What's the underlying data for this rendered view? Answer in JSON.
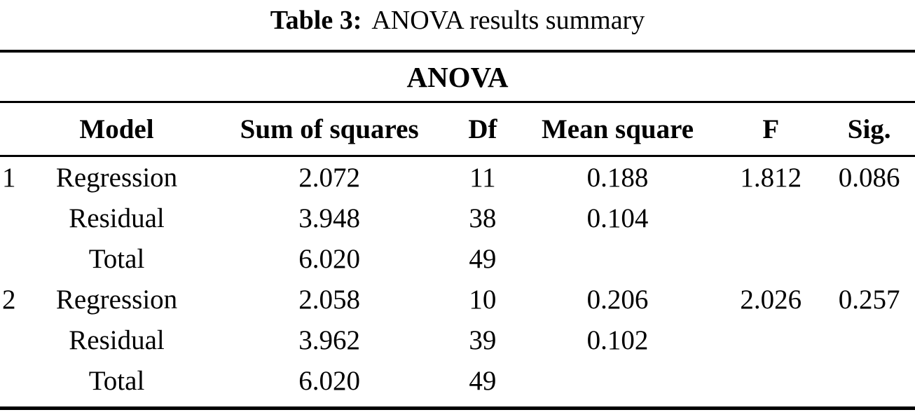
{
  "caption": {
    "label": "Table 3:",
    "text": "ANOVA results summary"
  },
  "table": {
    "title": "ANOVA",
    "columns": [
      "",
      "Model",
      "Sum of squares",
      "Df",
      "Mean square",
      "F",
      "Sig."
    ],
    "rows": [
      [
        "1",
        "Regression",
        "2.072",
        "11",
        "0.188",
        "1.812",
        "0.086"
      ],
      [
        "",
        "Residual",
        "3.948",
        "38",
        "0.104",
        "",
        ""
      ],
      [
        "",
        "Total",
        "6.020",
        "49",
        "",
        "",
        ""
      ],
      [
        "2",
        "Regression",
        "2.058",
        "10",
        "0.206",
        "2.026",
        "0.257"
      ],
      [
        "",
        "Residual",
        "3.962",
        "39",
        "0.102",
        "",
        ""
      ],
      [
        "",
        "Total",
        "6.020",
        "49",
        "",
        "",
        ""
      ]
    ]
  },
  "chart_data": {
    "type": "table",
    "title": "ANOVA",
    "caption": "Table 3: ANOVA results summary",
    "columns": [
      "Model",
      "Sum of squares",
      "Df",
      "Mean square",
      "F",
      "Sig."
    ],
    "models": [
      {
        "model": 1,
        "regression": {
          "sum_of_squares": 2.072,
          "df": 11,
          "mean_square": 0.188,
          "f": 1.812,
          "sig": 0.086
        },
        "residual": {
          "sum_of_squares": 3.948,
          "df": 38,
          "mean_square": 0.104
        },
        "total": {
          "sum_of_squares": 6.02,
          "df": 49
        }
      },
      {
        "model": 2,
        "regression": {
          "sum_of_squares": 2.058,
          "df": 10,
          "mean_square": 0.206,
          "f": 2.026,
          "sig": 0.257
        },
        "residual": {
          "sum_of_squares": 3.962,
          "df": 39,
          "mean_square": 0.102
        },
        "total": {
          "sum_of_squares": 6.02,
          "df": 49
        }
      }
    ],
    "colors": {
      "text": "#000000",
      "rule": "#000000",
      "background": "#ffffff"
    }
  }
}
